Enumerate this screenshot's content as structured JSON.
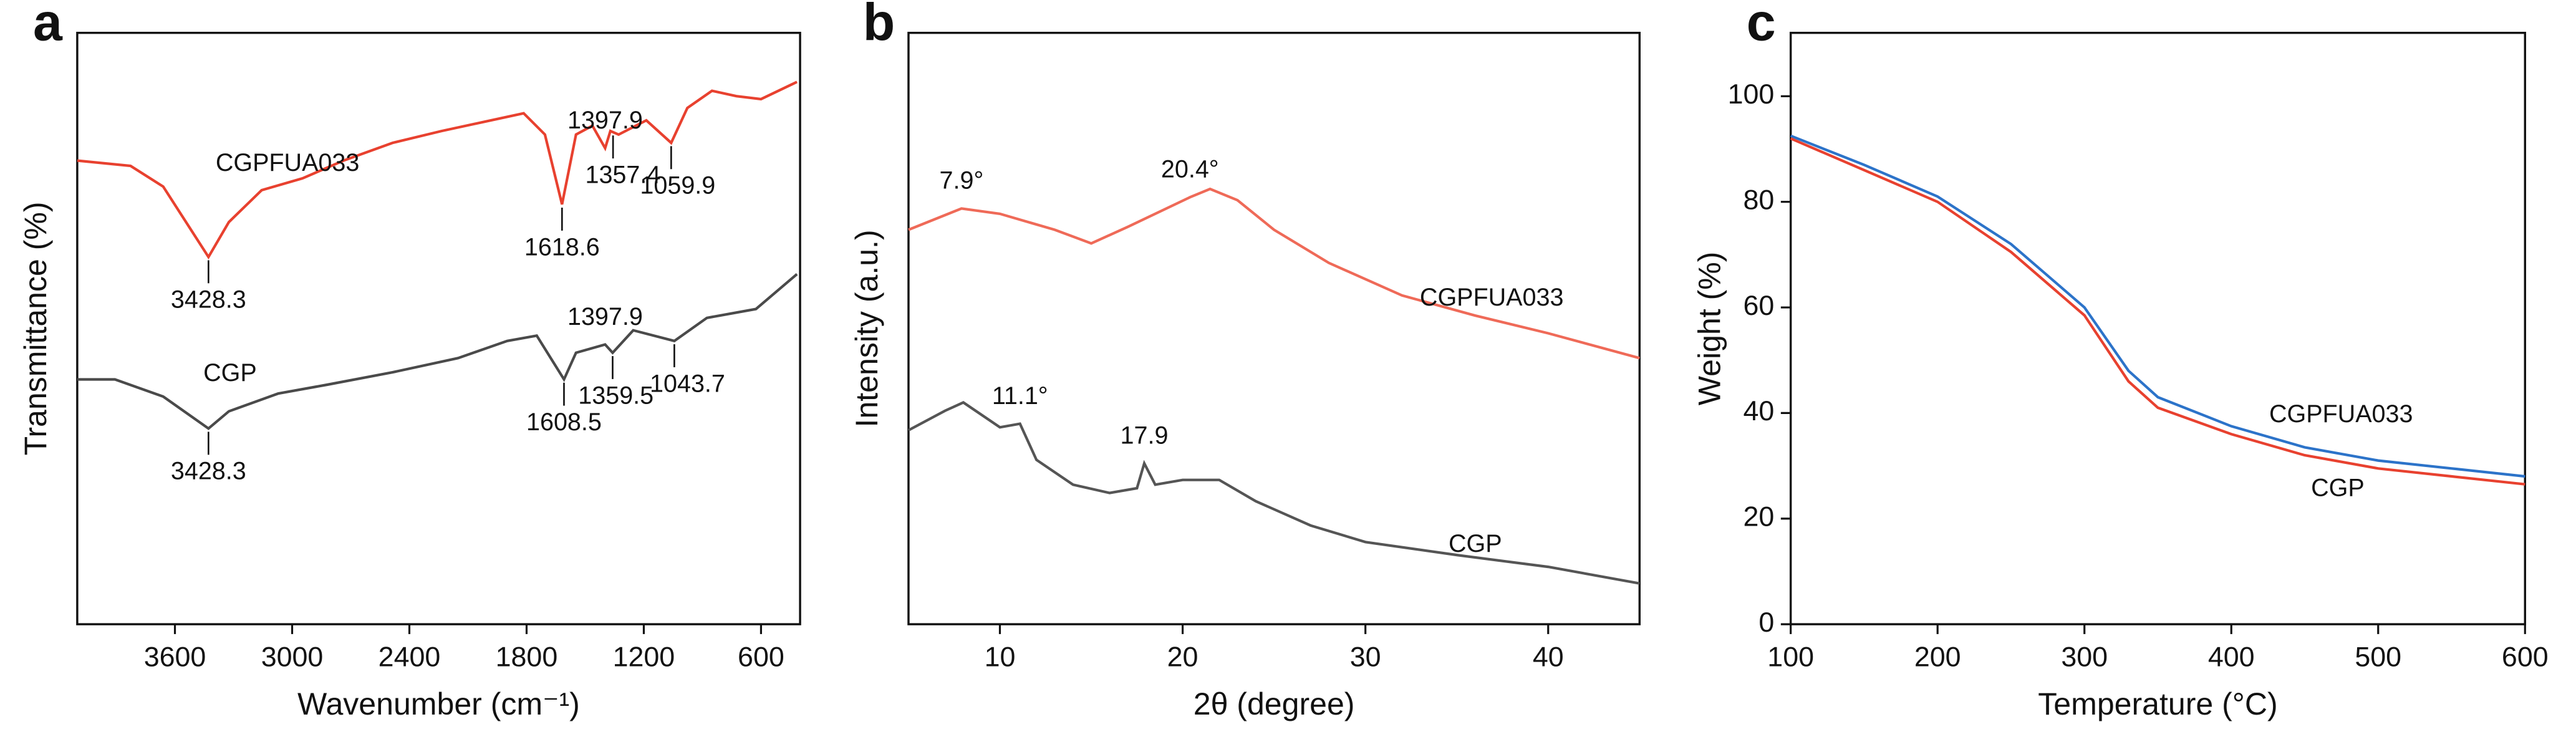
{
  "chart_data": [
    {
      "type": "line",
      "panel_label": "a",
      "xlabel": "Wavenumber (cm⁻¹)",
      "ylabel": "Transmittance (%)",
      "xlim": [
        4100,
        400
      ],
      "xticks": [
        3600,
        3000,
        2400,
        1800,
        1200,
        600
      ],
      "ylim": [
        0,
        100
      ],
      "series": [
        {
          "name": "CGPFUA033",
          "color": "#e8412f",
          "x": [
            4100,
            3827,
            3660,
            3428.3,
            3324,
            3156,
            2947,
            2737,
            2486,
            2235,
            1983,
            1815,
            1706,
            1618.6,
            1547,
            1463,
            1397.9,
            1371,
            1329,
            1187,
            1059.9,
            977,
            851,
            726,
            600,
            416
          ],
          "values": [
            78.4,
            77.5,
            74,
            62.1,
            68,
            73.4,
            75.4,
            78.4,
            81.4,
            83.4,
            85.2,
            86.4,
            82.8,
            71,
            82.8,
            84.3,
            80.5,
            83.4,
            82.8,
            85.2,
            81.4,
            87.3,
            90.2,
            89.3,
            88.8,
            91.7
          ],
          "peaks": [
            3428.3,
            1618.6,
            1397.9,
            1357.4,
            1059.9
          ]
        },
        {
          "name": "CGP",
          "color": "#4a4a4a",
          "x": [
            4100,
            3907,
            3660,
            3428.3,
            3324,
            3072,
            2821,
            2486,
            2151,
            1899,
            1748,
            1608.5,
            1547,
            1397.9,
            1359.5,
            1254,
            1043.7,
            877,
            626,
            416
          ],
          "values": [
            41.4,
            41.4,
            38.5,
            33.1,
            36,
            39,
            40.5,
            42.6,
            45,
            47.9,
            48.8,
            41.4,
            45.9,
            47.3,
            45.9,
            49.7,
            47.9,
            51.8,
            53.3,
            59.2
          ],
          "peaks": [
            3428.3,
            1608.5,
            1397.9,
            1359.5,
            1043.7
          ]
        }
      ]
    },
    {
      "type": "line",
      "panel_label": "b",
      "xlabel": "2θ (degree)",
      "ylabel": "Intensity (a.u.)",
      "xlim": [
        5,
        45
      ],
      "xticks": [
        10,
        20,
        30,
        40
      ],
      "ylim": [
        0,
        100
      ],
      "series": [
        {
          "name": "CGPFUA033",
          "color": "#ef6a58",
          "x": [
            5,
            7.9,
            10,
            13,
            15,
            17,
            20.4,
            21.5,
            23,
            25,
            28,
            32,
            36,
            40,
            45
          ],
          "values": [
            66.7,
            70.3,
            69.4,
            66.7,
            64.4,
            67.2,
            72.2,
            73.6,
            71.7,
            66.7,
            61.1,
            55.6,
            52.2,
            49.2,
            45
          ],
          "peaks": [
            {
              "value": 7.9,
              "label": "7.9°"
            },
            {
              "value": 20.4,
              "label": "20.4°"
            }
          ]
        },
        {
          "name": "CGP",
          "color": "#555555",
          "x": [
            5,
            7,
            8,
            10,
            11.1,
            12,
            14,
            16,
            17.5,
            17.9,
            18.5,
            20,
            22,
            24,
            27,
            30,
            35,
            40,
            45
          ],
          "values": [
            32.8,
            36.1,
            37.5,
            33.3,
            33.9,
            27.8,
            23.6,
            22.2,
            23,
            27.2,
            23.6,
            24.4,
            24.4,
            20.8,
            16.7,
            13.9,
            11.7,
            9.7,
            6.9
          ],
          "peaks": [
            {
              "value": 11.1,
              "label": "11.1°"
            },
            17.9
          ]
        }
      ]
    },
    {
      "type": "line",
      "panel_label": "c",
      "xlabel": "Temperature (°C)",
      "ylabel": "Weight (%)",
      "xlim": [
        100,
        600
      ],
      "xticks": [
        100,
        200,
        300,
        400,
        500,
        600
      ],
      "ylim": [
        0,
        112
      ],
      "yticks": [
        0,
        20,
        40,
        60,
        80,
        100
      ],
      "series": [
        {
          "name": "CGPFUA033",
          "color": "#2c73c9",
          "x": [
            100,
            150,
            200,
            250,
            300,
            330,
            350,
            400,
            450,
            500,
            550,
            600
          ],
          "values": [
            92.5,
            87,
            81,
            72,
            60,
            48,
            43,
            37.5,
            33.5,
            31,
            29.5,
            28
          ]
        },
        {
          "name": "CGP",
          "color": "#e8412f",
          "x": [
            100,
            150,
            200,
            250,
            300,
            330,
            350,
            400,
            450,
            500,
            550,
            600
          ],
          "values": [
            92,
            86,
            80,
            70.5,
            58.5,
            46,
            41,
            36,
            32,
            29.5,
            28,
            26.5
          ]
        }
      ]
    }
  ]
}
